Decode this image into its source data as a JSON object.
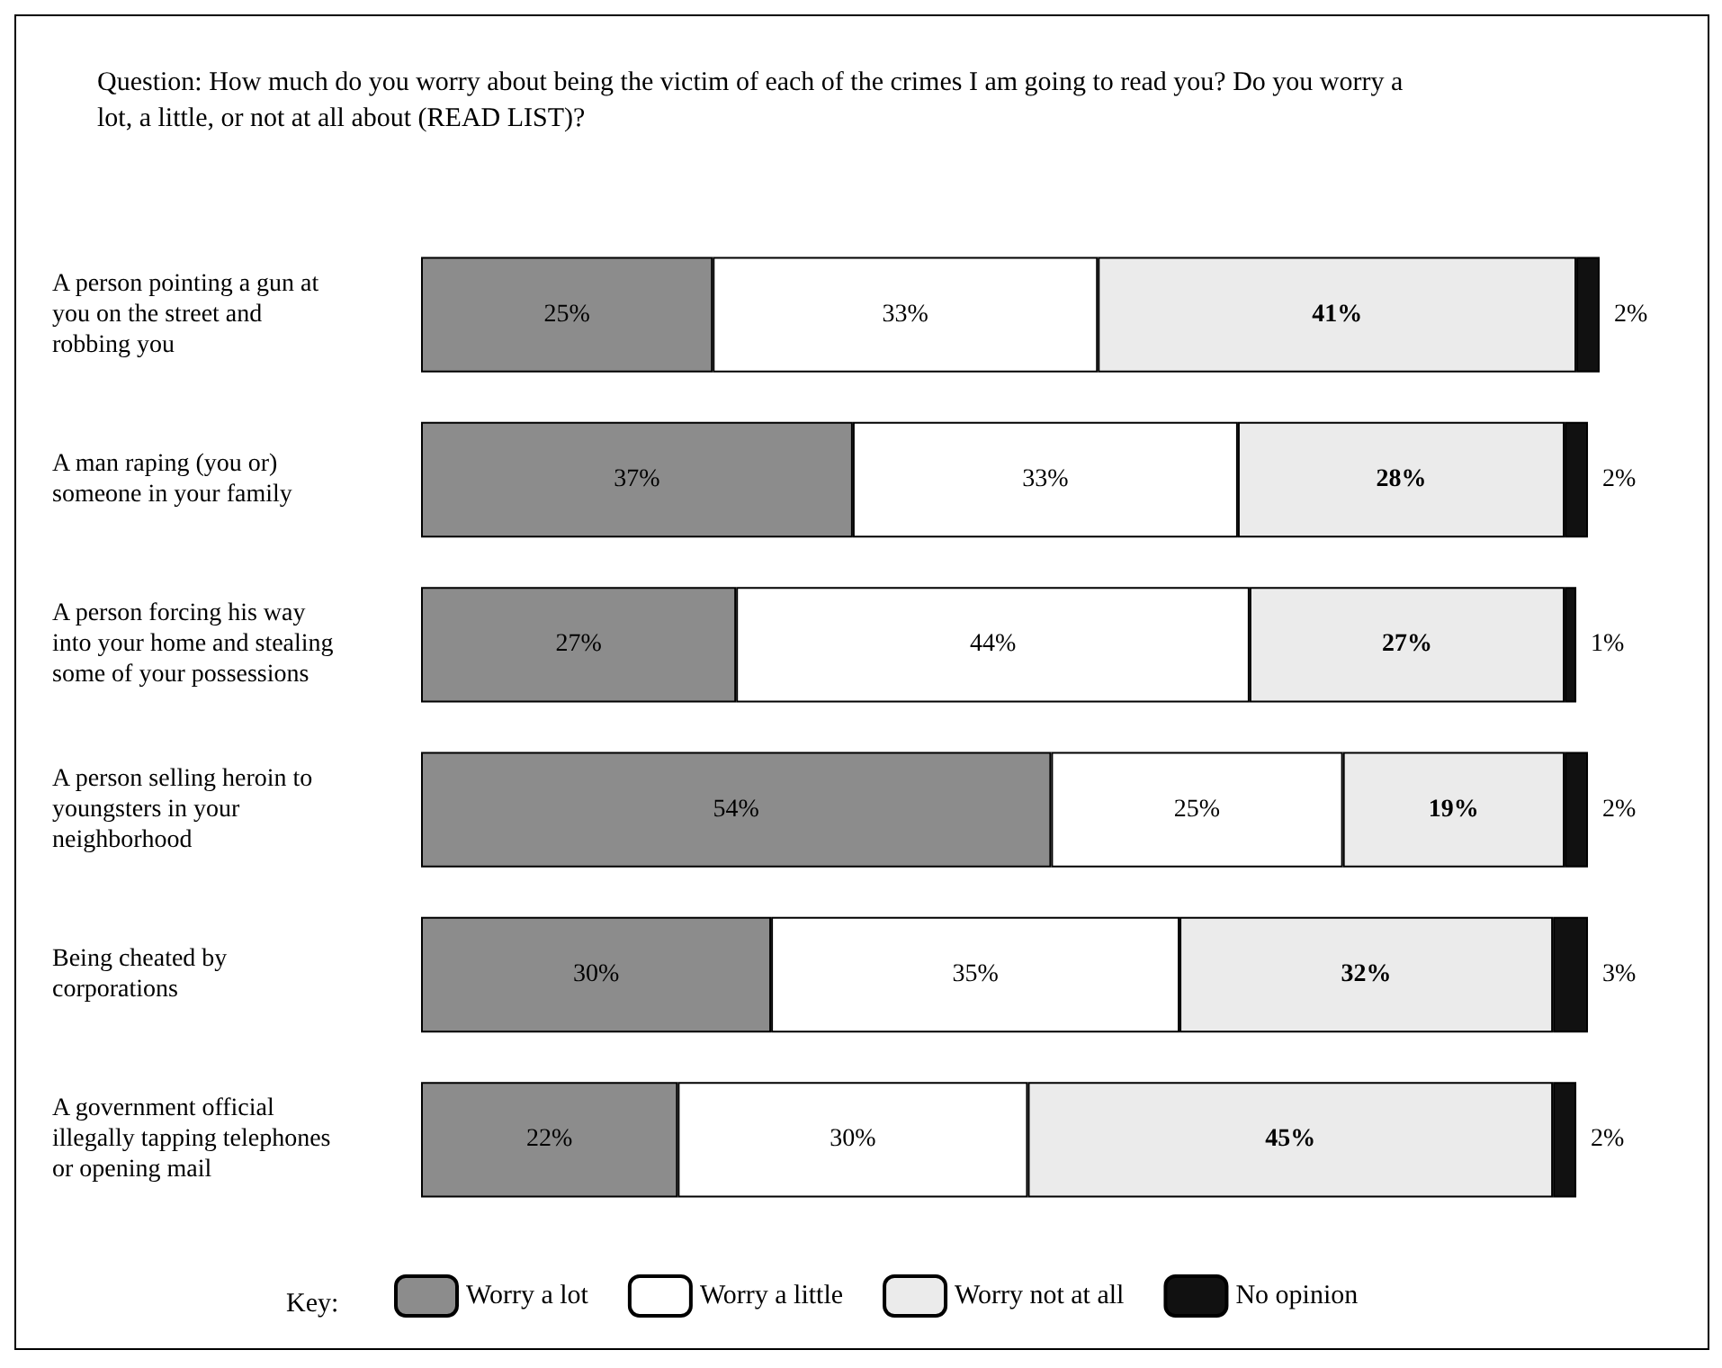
{
  "chart_data": {
    "type": "bar",
    "orientation": "horizontal",
    "stacked": true,
    "title": "Question: How much do you worry about being the victim of each of the crimes I am going to read you? Do you worry a lot, a little, or not at all about (READ LIST)?",
    "categories": [
      "A person pointing a gun at you on the street and robbing you",
      "A man raping (you or) someone in your family",
      "A person forcing his way into your home and stealing some of your possessions",
      "A person selling heroin to youngsters in your neighborhood",
      "Being cheated by corporations",
      "A government official illegally tapping telephones or opening mail"
    ],
    "series": [
      {
        "name": "Worry a lot",
        "color": "#8c8c8c",
        "values": [
          25,
          37,
          27,
          54,
          30,
          22
        ],
        "value_labels": [
          "25%",
          "37%",
          "27%",
          "54%",
          "30%",
          "22%"
        ]
      },
      {
        "name": "Worry a little",
        "color": "#ffffff",
        "values": [
          33,
          33,
          44,
          25,
          35,
          30
        ],
        "value_labels": [
          "33%",
          "33%",
          "44%",
          "25%",
          "35%",
          "30%"
        ]
      },
      {
        "name": "Worry not at all",
        "color": "#ebebeb",
        "values": [
          41,
          28,
          27,
          19,
          32,
          45
        ],
        "value_labels": [
          "41%",
          "28%",
          "27%",
          "19%",
          "32%",
          "45%"
        ]
      },
      {
        "name": "No opinion",
        "color": "#111111",
        "values": [
          2,
          2,
          1,
          2,
          3,
          2
        ],
        "value_labels": [
          "2%",
          "2%",
          "1%",
          "2%",
          "3%",
          "2%"
        ]
      }
    ],
    "xlim": [
      0,
      101
    ],
    "legend_title": "Key:",
    "legend": "bottom"
  }
}
